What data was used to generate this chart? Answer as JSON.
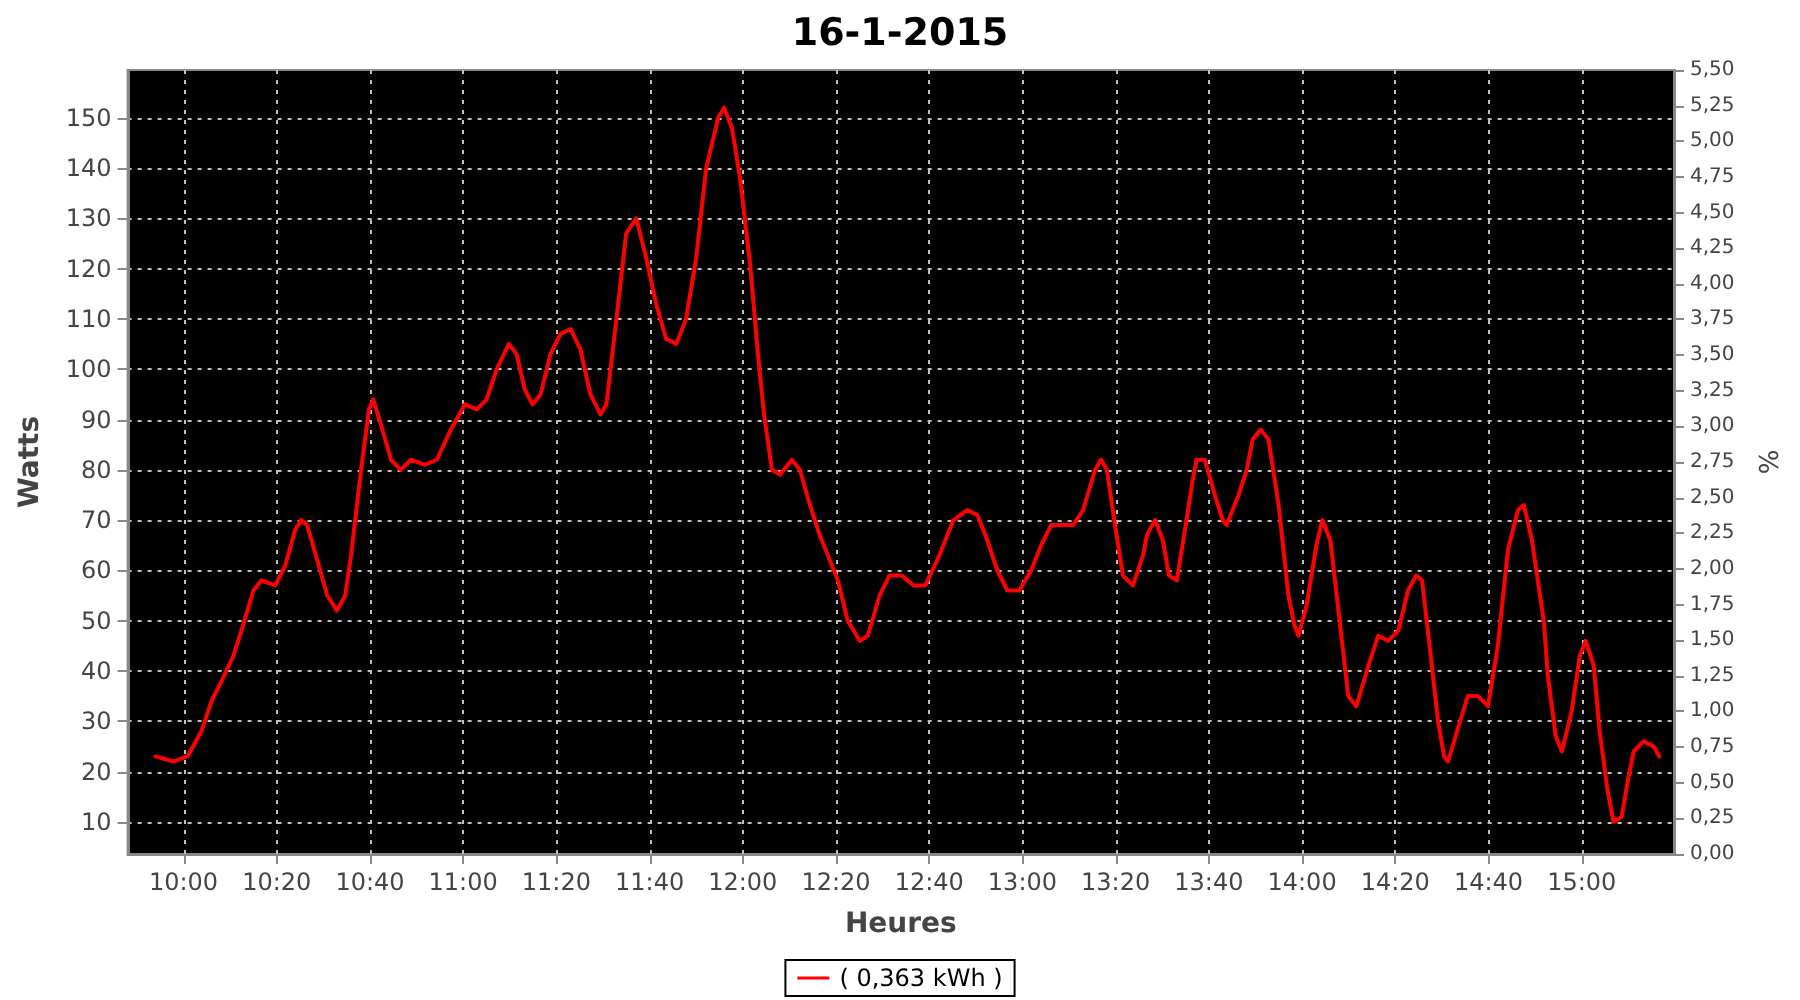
{
  "chart_data": {
    "type": "line",
    "title": "16-1-2015",
    "xlabel": "Heures",
    "ylabel": "Watts",
    "y2label": "%",
    "xlim": [
      9.8,
      15.33
    ],
    "xticks": [
      {
        "value": 10,
        "label": "10:00"
      },
      {
        "value": 10.3333,
        "label": "10:20"
      },
      {
        "value": 10.6667,
        "label": "10:40"
      },
      {
        "value": 11,
        "label": "11:00"
      },
      {
        "value": 11.3333,
        "label": "11:20"
      },
      {
        "value": 11.6667,
        "label": "11:40"
      },
      {
        "value": 12,
        "label": "12:00"
      },
      {
        "value": 12.3333,
        "label": "12:20"
      },
      {
        "value": 12.6667,
        "label": "12:40"
      },
      {
        "value": 13,
        "label": "13:00"
      },
      {
        "value": 13.3333,
        "label": "13:20"
      },
      {
        "value": 13.6667,
        "label": "13:40"
      },
      {
        "value": 14,
        "label": "14:00"
      },
      {
        "value": 14.3333,
        "label": "14:20"
      },
      {
        "value": 14.6667,
        "label": "14:40"
      },
      {
        "value": 15,
        "label": "15:00"
      }
    ],
    "ylim": [
      3.6,
      159.5
    ],
    "yticks": [
      10,
      20,
      30,
      40,
      50,
      60,
      70,
      80,
      90,
      100,
      110,
      120,
      130,
      140,
      150
    ],
    "y2lim": [
      0,
      5.5
    ],
    "y2ticks": [
      {
        "value": 0,
        "label": "0,00"
      },
      {
        "value": 0.25,
        "label": "0,25"
      },
      {
        "value": 0.5,
        "label": "0,50"
      },
      {
        "value": 0.75,
        "label": "0,75"
      },
      {
        "value": 1,
        "label": "1,00"
      },
      {
        "value": 1.25,
        "label": "1,25"
      },
      {
        "value": 1.5,
        "label": "1,50"
      },
      {
        "value": 1.75,
        "label": "1,75"
      },
      {
        "value": 2,
        "label": "2,00"
      },
      {
        "value": 2.25,
        "label": "2,25"
      },
      {
        "value": 2.5,
        "label": "2,50"
      },
      {
        "value": 2.75,
        "label": "2,75"
      },
      {
        "value": 3,
        "label": "3,00"
      },
      {
        "value": 3.25,
        "label": "3,25"
      },
      {
        "value": 3.5,
        "label": "3,50"
      },
      {
        "value": 3.75,
        "label": "3,75"
      },
      {
        "value": 4,
        "label": "4,00"
      },
      {
        "value": 4.25,
        "label": "4,25"
      },
      {
        "value": 4.5,
        "label": "4,50"
      },
      {
        "value": 4.75,
        "label": "4,75"
      },
      {
        "value": 5,
        "label": "5,00"
      },
      {
        "value": 5.25,
        "label": "5,25"
      },
      {
        "value": 5.5,
        "label": "5,50"
      }
    ],
    "grid": true,
    "legend": "bottom",
    "marker": "none",
    "line_style": "solid",
    "series": [
      {
        "name": "( 0,363 kWh )",
        "color": "#ff0000",
        "x": [
          9.9,
          9.964,
          10.014,
          10.064,
          10.1,
          10.136,
          10.178,
          10.207,
          10.25,
          10.278,
          10.328,
          10.364,
          10.399,
          10.421,
          10.442,
          10.478,
          10.514,
          10.549,
          10.578,
          10.599,
          10.635,
          10.663,
          10.678,
          10.706,
          10.742,
          10.777,
          10.813,
          10.863,
          10.906,
          10.956,
          11.006,
          11.049,
          11.084,
          11.12,
          11.163,
          11.191,
          11.22,
          11.248,
          11.277,
          11.312,
          11.348,
          11.384,
          11.419,
          11.455,
          11.491,
          11.512,
          11.548,
          11.583,
          11.619,
          11.655,
          11.69,
          11.726,
          11.762,
          11.797,
          11.833,
          11.869,
          11.912,
          11.933,
          11.961,
          11.99,
          12.026,
          12.054,
          12.076,
          12.104,
          12.133,
          12.175,
          12.204,
          12.24,
          12.275,
          12.304,
          12.34,
          12.375,
          12.418,
          12.447,
          12.489,
          12.525,
          12.568,
          12.611,
          12.653,
          12.703,
          12.753,
          12.803,
          12.839,
          12.874,
          12.91,
          12.946,
          12.989,
          13.031,
          13.067,
          13.103,
          13.146,
          13.181,
          13.217,
          13.26,
          13.281,
          13.302,
          13.331,
          13.359,
          13.395,
          13.431,
          13.445,
          13.474,
          13.502,
          13.524,
          13.552,
          13.581,
          13.609,
          13.623,
          13.652,
          13.688,
          13.716,
          13.73,
          13.773,
          13.802,
          13.823,
          13.852,
          13.88,
          13.916,
          13.951,
          13.973,
          13.987,
          14.016,
          14.051,
          14.073,
          14.101,
          14.13,
          14.165,
          14.194,
          14.237,
          14.272,
          14.308,
          14.344,
          14.379,
          14.408,
          14.429,
          14.458,
          14.486,
          14.508,
          14.522,
          14.565,
          14.593,
          14.629,
          14.665,
          14.7,
          14.736,
          14.772,
          14.793,
          14.822,
          14.864,
          14.879,
          14.907,
          14.929,
          14.964,
          14.993,
          15.014,
          15.043,
          15.064,
          15.093,
          15.114,
          15.143,
          15.164,
          15.186,
          15.221,
          15.257,
          15.278
        ],
        "values": [
          23,
          22,
          23,
          28,
          34,
          38,
          43,
          48,
          56,
          58,
          57,
          61,
          68,
          70,
          69,
          62,
          55,
          52,
          55,
          63,
          80,
          92,
          94,
          89,
          82,
          80,
          82,
          81,
          82,
          88,
          93,
          92,
          94,
          100,
          105,
          103,
          96,
          93,
          95,
          103,
          107,
          108,
          104,
          95,
          91,
          93,
          110,
          127,
          130,
          122,
          113,
          106,
          105,
          110,
          122,
          140,
          150,
          152,
          148,
          138,
          121,
          103,
          91,
          80,
          79,
          82,
          80,
          73,
          67,
          63,
          58,
          50,
          46,
          47,
          55,
          59,
          59,
          57,
          57,
          63,
          70,
          72,
          71,
          66,
          60,
          56,
          56,
          60,
          65,
          69,
          69,
          69,
          72,
          80,
          82,
          80,
          69,
          59,
          57,
          63,
          67,
          70,
          66,
          59,
          58,
          68,
          78,
          82,
          82,
          75,
          70,
          69,
          75,
          80,
          86,
          88,
          86,
          73,
          55,
          49,
          47,
          53,
          65,
          70,
          66,
          52,
          35,
          33,
          41,
          47,
          46,
          48,
          56,
          59,
          58,
          44,
          30,
          23,
          22,
          30,
          35,
          35,
          33,
          45,
          64,
          72,
          73,
          66,
          50,
          39,
          27,
          24,
          32,
          43,
          46,
          41,
          28,
          16,
          10,
          11,
          18,
          24,
          26,
          25,
          23
        ]
      }
    ]
  }
}
